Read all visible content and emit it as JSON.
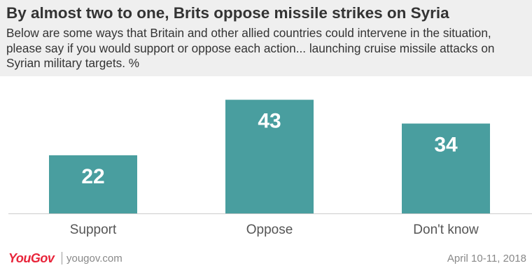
{
  "header": {
    "title": "By almost two to one, Brits oppose missile strikes on Syria",
    "subtitle": "Below are some ways that Britain and other allied countries could intervene in the situation, please say if you would support or oppose each action... launching cruise missile attacks on Syrian military targets. %"
  },
  "chart_data": {
    "type": "bar",
    "title": "By almost two to one, Brits oppose missile strikes on Syria",
    "categories": [
      "Support",
      "Oppose",
      "Don't know"
    ],
    "values": [
      22,
      43,
      34
    ],
    "data_labels": [
      "22",
      "43",
      "34"
    ],
    "xlabel": "",
    "ylabel": "",
    "ylim": [
      0,
      45
    ],
    "grid": false,
    "legend": "none",
    "bar_color": "#499e9f"
  },
  "footer": {
    "logo": "YouGov",
    "site": "yougov.com",
    "date": "April 10-11, 2018"
  },
  "colors": {
    "header_bg": "#efefef",
    "bar": "#499e9f",
    "brand": "#e8243a"
  }
}
